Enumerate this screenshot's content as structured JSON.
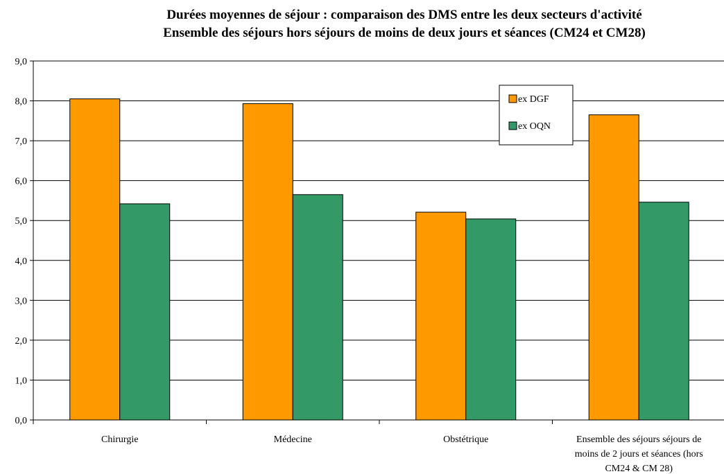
{
  "chart_data": {
    "type": "bar",
    "title_lines": [
      "Durées moyennes de séjour : comparaison des DMS entre les deux secteurs d'activité",
      "Ensemble des séjours hors séjours de moins de deux jours et séances (CM24 et CM28)"
    ],
    "categories": [
      [
        "Chirurgie"
      ],
      [
        "Médecine"
      ],
      [
        "Obstétrique"
      ],
      [
        "Ensemble des séjours séjours de",
        "moins de 2 jours et séances (hors",
        "CM24 & CM 28)"
      ]
    ],
    "series": [
      {
        "name": "ex DGF",
        "color": "#ff9900",
        "values": [
          8.05,
          7.93,
          5.21,
          7.65
        ]
      },
      {
        "name": "ex OQN",
        "color": "#339966",
        "values": [
          5.42,
          5.65,
          5.04,
          5.46
        ]
      }
    ],
    "y_ticks": [
      "0,0",
      "1,0",
      "2,0",
      "3,0",
      "4,0",
      "5,0",
      "6,0",
      "7,0",
      "8,0",
      "9,0"
    ],
    "ylim": [
      0,
      9
    ],
    "grid": true,
    "legend_position": "top-right"
  }
}
